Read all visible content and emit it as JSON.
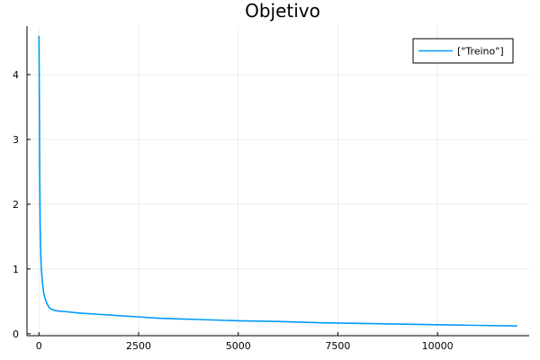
{
  "chart_data": {
    "type": "line",
    "title": "Objetivo",
    "xlabel": "",
    "ylabel": "",
    "xlim": [
      -300,
      12300
    ],
    "ylim": [
      -0.03,
      4.75
    ],
    "x_ticks": [
      0,
      2500,
      5000,
      7500,
      10000
    ],
    "x_tick_labels": [
      "0",
      "2500",
      "5000",
      "7500",
      "10000"
    ],
    "y_ticks": [
      0,
      1,
      2,
      3,
      4
    ],
    "y_tick_labels": [
      "0",
      "1",
      "2",
      "3",
      "4"
    ],
    "grid": true,
    "legend_position": "top-right",
    "series": [
      {
        "name": "[\"Treino\"]",
        "color": "#009AFA",
        "x": [
          1,
          10,
          20,
          30,
          40,
          50,
          60,
          80,
          100,
          120,
          150,
          200,
          250,
          300,
          400,
          500,
          700,
          1000,
          1500,
          2000,
          2500,
          3000,
          3500,
          4000,
          5000,
          6000,
          7000,
          8000,
          9000,
          10000,
          11000,
          12000
        ],
        "y": [
          4.6,
          3.6,
          2.4,
          1.7,
          1.35,
          1.15,
          1.0,
          0.85,
          0.72,
          0.63,
          0.55,
          0.47,
          0.41,
          0.38,
          0.36,
          0.35,
          0.34,
          0.32,
          0.3,
          0.28,
          0.26,
          0.24,
          0.23,
          0.22,
          0.2,
          0.19,
          0.17,
          0.16,
          0.15,
          0.14,
          0.13,
          0.12
        ]
      }
    ]
  }
}
